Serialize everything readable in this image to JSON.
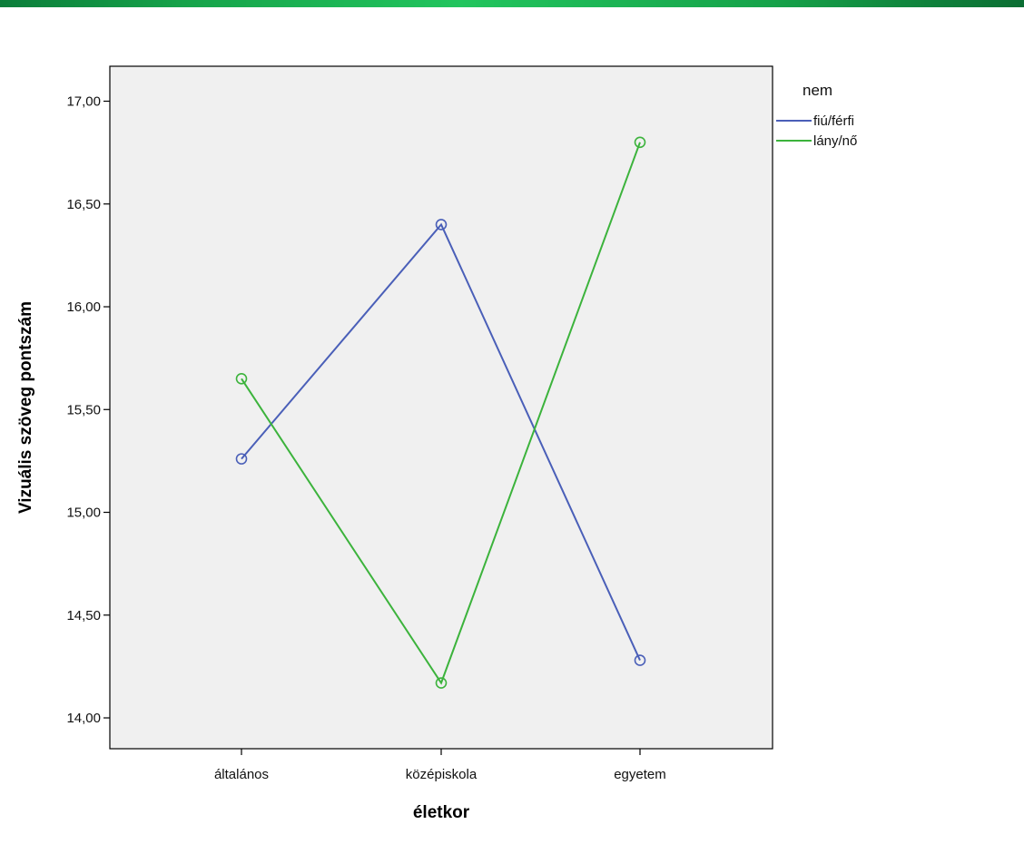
{
  "chart_data": {
    "type": "line",
    "xlabel": "életkor",
    "ylabel": "Vizuális szöveg pontszám",
    "categories": [
      "általános",
      "középiskola",
      "egyetem"
    ],
    "ylim": [
      13.85,
      17.17
    ],
    "yticks": [
      "14,00",
      "14,50",
      "15,00",
      "15,50",
      "16,00",
      "16,50",
      "17,00"
    ],
    "ytick_values": [
      14.0,
      14.5,
      15.0,
      15.5,
      16.0,
      16.5,
      17.0
    ],
    "grid": false,
    "legend": {
      "title": "nem",
      "placement": "right"
    },
    "plot_background": "#f0f0f0",
    "series": [
      {
        "name": "fiú/férfi",
        "color": "#4a5fb8",
        "values": [
          15.26,
          16.4,
          14.28
        ],
        "marker": "circle-open"
      },
      {
        "name": "lány/nő",
        "color": "#3cb33c",
        "values": [
          15.65,
          14.17,
          16.8
        ],
        "marker": "circle-open"
      }
    ]
  }
}
